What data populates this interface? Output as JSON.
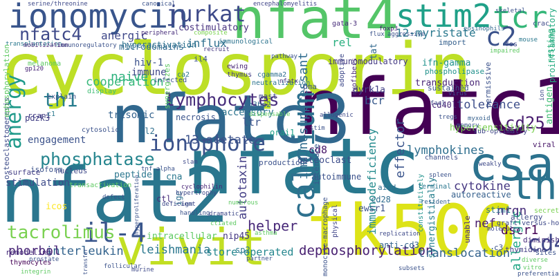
{
  "words": [
    {
      "text": "cyclosporin",
      "color": "#bddf26"
    },
    {
      "text": "nfatc",
      "color": "#29788e"
    },
    {
      "text": "nfat2",
      "color": "#2a768e"
    },
    {
      "text": "nfatc1",
      "color": "#440154"
    },
    {
      "text": "nfatc3",
      "color": "#31688e"
    },
    {
      "text": "nfat4",
      "color": "#54c568"
    },
    {
      "text": "fk506",
      "color": "#dde318"
    },
    {
      "text": "vivit",
      "color": "#c2df23"
    },
    {
      "text": "csa",
      "color": "#2c728e"
    },
    {
      "text": "ionomycin",
      "color": "#39558c"
    },
    {
      "text": "stim2",
      "color": "#1fa088"
    },
    {
      "text": "tcr",
      "color": "#35b779"
    },
    {
      "text": "jurkat",
      "color": "#3e4a89"
    },
    {
      "text": "calcium",
      "color": "#2d708e"
    },
    {
      "text": "th2",
      "color": "#2c738e"
    },
    {
      "text": "ionophore",
      "color": "#3b528b"
    },
    {
      "text": "il-4",
      "color": "#39568c"
    },
    {
      "text": "nfatc4",
      "color": "#3e4989"
    },
    {
      "text": "c2",
      "color": "#3b528b"
    },
    {
      "text": "lymphocytes",
      "color": "#472d7b"
    },
    {
      "text": "anergy",
      "color": "#1f9a8a"
    },
    {
      "text": "th1",
      "color": "#287d8e"
    },
    {
      "text": "cd4",
      "color": "#3f4788"
    },
    {
      "text": "tacrolimus",
      "color": "#7ad151"
    },
    {
      "text": "phosphatase",
      "color": "#25858e"
    },
    {
      "text": "cd25",
      "color": "#481d6f"
    },
    {
      "text": "tolerance",
      "color": "#3d4e8a"
    },
    {
      "text": "immunosuppressant",
      "color": "#2f6c8e"
    },
    {
      "text": "immunodeficiency",
      "color": "#238a8d"
    },
    {
      "text": "helper",
      "color": "#482979"
    },
    {
      "text": "dephosphorylation",
      "color": "#482071"
    },
    {
      "text": "translocation",
      "color": "#33628d"
    },
    {
      "text": "interleukin",
      "color": "#33638d"
    },
    {
      "text": "phorbol",
      "color": "#482576"
    },
    {
      "text": "leishmania",
      "color": "#2a778e"
    },
    {
      "text": "store-operated",
      "color": "#24868e"
    },
    {
      "text": "13-acetate",
      "color": "#3b528b"
    },
    {
      "text": "cooperation",
      "color": "#35b779"
    },
    {
      "text": "cytokine",
      "color": "#453781"
    },
    {
      "text": "lymphokines",
      "color": "#2e6e8e"
    },
    {
      "text": "autotaxin",
      "color": "#433e85"
    },
    {
      "text": "dscr1",
      "color": "#440154"
    },
    {
      "text": "nrqn",
      "color": "#472c7a"
    },
    {
      "text": "allergic",
      "color": "#22a785"
    },
    {
      "text": "nef",
      "color": "#481b6d"
    },
    {
      "text": "12-myristate",
      "color": "#2a788e"
    },
    {
      "text": "anergic",
      "color": "#3f4889"
    },
    {
      "text": "naive",
      "color": "#2db27d"
    },
    {
      "text": "rel",
      "color": "#29af7f"
    },
    {
      "text": "influx",
      "color": "#2e6f8e"
    },
    {
      "text": "bcr",
      "color": "#38598c"
    },
    {
      "text": "cd8",
      "color": "#481769"
    },
    {
      "text": "effector",
      "color": "#3a548c"
    },
    {
      "text": "accessory",
      "color": "#2c738e"
    },
    {
      "text": "ltr",
      "color": "#3a538b"
    },
    {
      "text": "costimulatory",
      "color": "#46307e"
    },
    {
      "text": "microdomains",
      "color": "#31688e"
    },
    {
      "text": "hiv-1",
      "color": "#3b518b"
    },
    {
      "text": "immune",
      "color": "#3f4889"
    },
    {
      "text": "trisomic",
      "color": "#33628d"
    },
    {
      "text": "pdzk3",
      "color": "#423f85"
    },
    {
      "text": "engagement",
      "color": "#3b528b"
    },
    {
      "text": "stimulation",
      "color": "#3e4c8a"
    },
    {
      "text": "hypersensitivity",
      "color": "#7ad151"
    },
    {
      "text": "antigen",
      "color": "#3fbc73"
    },
    {
      "text": "transduction",
      "color": "#482576"
    },
    {
      "text": "ifn-gamma",
      "color": "#20928c"
    },
    {
      "text": "osteoclast",
      "color": "#3d4d8a"
    },
    {
      "text": "cd40l",
      "color": "#482878"
    },
    {
      "text": "dyrk1a",
      "color": "#424186"
    },
    {
      "text": "tat",
      "color": "#31688e"
    },
    {
      "text": "immunomodulatory",
      "color": "#443a83"
    },
    {
      "text": "autoimmune",
      "color": "#3b528b"
    },
    {
      "text": "autoreactive",
      "color": "#35608d"
    },
    {
      "text": "cd28",
      "color": "#2f6b8e"
    },
    {
      "text": "aicd",
      "color": "#2e6e8e"
    },
    {
      "text": "ewsr1",
      "color": "#3b528b"
    },
    {
      "text": "anti-cd3",
      "color": "#33638d"
    },
    {
      "text": "stim1",
      "color": "#2c738e"
    },
    {
      "text": "peptide",
      "color": "#2a768e"
    },
    {
      "text": "cna",
      "color": "#2a788e"
    },
    {
      "text": "icos",
      "color": "#fde725"
    },
    {
      "text": "ige",
      "color": "#2e6f8e"
    },
    {
      "text": "ctl",
      "color": "#472d7b"
    },
    {
      "text": "nip45",
      "color": "#453882"
    },
    {
      "text": "sp2",
      "color": "#2a778e"
    },
    {
      "text": "intracellular",
      "color": "#5ec962"
    },
    {
      "text": "orai1",
      "color": "#1fa188"
    },
    {
      "text": "sh3bp2",
      "color": "#31688e"
    },
    {
      "text": "mast",
      "color": "#3e4a89"
    },
    {
      "text": "necrosis",
      "color": "#3a538b"
    },
    {
      "text": "il2",
      "color": "#2e6e8e"
    },
    {
      "text": "rcan1",
      "color": "#433e85"
    },
    {
      "text": "isoform",
      "color": "#3b528b"
    },
    {
      "text": "nucleus",
      "color": "#3e4989"
    },
    {
      "text": "surface",
      "color": "#433e85"
    },
    {
      "text": "osteoclastogenesis",
      "color": "#3e4c8a"
    },
    {
      "text": "remodeling",
      "color": "#472d7b"
    },
    {
      "text": "thymocytes",
      "color": "#440154"
    },
    {
      "text": "production",
      "color": "#3b518b"
    },
    {
      "text": "interface",
      "color": "#38598c"
    },
    {
      "text": "physical",
      "color": "#404588"
    },
    {
      "text": "monocyte-macrophage",
      "color": "#3b528b"
    },
    {
      "text": "constitutively",
      "color": "#20928c"
    },
    {
      "text": "synergistically",
      "color": "#277f8e"
    },
    {
      "text": "unable",
      "color": "#472c7a"
    },
    {
      "text": "channels",
      "color": "#3d4e8a"
    },
    {
      "text": "terminal",
      "color": "#2a768e"
    },
    {
      "text": "resident",
      "color": "#34618d"
    },
    {
      "text": "permissive",
      "color": "#3b528b"
    },
    {
      "text": "resting",
      "color": "#2db27d"
    },
    {
      "text": "proinflammatory",
      "color": "#25ab82"
    },
    {
      "text": "viral",
      "color": "#481769"
    },
    {
      "text": "sub-optimally",
      "color": "#404688"
    },
    {
      "text": "diminished",
      "color": "#472d7b"
    },
    {
      "text": "thymidine",
      "color": "#433e85"
    },
    {
      "text": "sites",
      "color": "#3b528b"
    },
    {
      "text": "graft-versus-host",
      "color": "#3e4989"
    },
    {
      "text": "secreting",
      "color": "#7ad151"
    },
    {
      "text": "allergy",
      "color": "#3e4a89"
    },
    {
      "text": "c3",
      "color": "#3b528b"
    },
    {
      "text": "c1",
      "color": "#2a788e"
    },
    {
      "text": "sustained",
      "color": "#3b528b"
    },
    {
      "text": "phospholipase",
      "color": "#21918c"
    },
    {
      "text": "pma",
      "color": "#3b528b"
    },
    {
      "text": "adoptive",
      "color": "#3e4989"
    },
    {
      "text": "myofibers",
      "color": "#482878"
    },
    {
      "text": "ewing",
      "color": "#482576"
    },
    {
      "text": "thymus",
      "color": "#433e85"
    },
    {
      "text": "cgamma2",
      "color": "#2e6f8e"
    },
    {
      "text": "neutralization",
      "color": "#2c738e"
    },
    {
      "text": "synergizes",
      "color": "#5ec962"
    },
    {
      "text": "infected",
      "color": "#3b528b"
    },
    {
      "text": "ca2",
      "color": "#2a788e"
    },
    {
      "text": "il4",
      "color": "#3b528b"
    },
    {
      "text": "recruit",
      "color": "#453781"
    },
    {
      "text": "immunological",
      "color": "#2c738e"
    },
    {
      "text": "hyperactivation",
      "color": "#2c718e"
    },
    {
      "text": "peripheral",
      "color": "#472d7b"
    },
    {
      "text": "melanoma",
      "color": "#5ec962"
    },
    {
      "text": "gp120",
      "color": "#482576"
    },
    {
      "text": "explain",
      "color": "#3b528b"
    },
    {
      "text": "display",
      "color": "#3fbc73"
    },
    {
      "text": "transplantation",
      "color": "#2a788e"
    },
    {
      "text": "immunoregulatory",
      "color": "#3b528b"
    },
    {
      "text": "mobilization",
      "color": "#472d7b"
    },
    {
      "text": "serine/threonine",
      "color": "#3e4989"
    },
    {
      "text": "canonical",
      "color": "#3b528b"
    },
    {
      "text": "encephalomyelitis",
      "color": "#404588"
    },
    {
      "text": "gata-3",
      "color": "#472c7a"
    },
    {
      "text": "skeletal",
      "color": "#3b528b"
    },
    {
      "text": "crac",
      "color": "#3e4a89"
    },
    {
      "text": "eosinophils",
      "color": "#31688e"
    },
    {
      "text": "mouse",
      "color": "#2a788e"
    },
    {
      "text": "import",
      "color": "#35608d"
    },
    {
      "text": "aggressive",
      "color": "#3b528b"
    },
    {
      "text": "foxp3",
      "color": "#482071"
    },
    {
      "text": "flux",
      "color": "#3b528b"
    },
    {
      "text": "fos",
      "color": "#3e4989"
    },
    {
      "text": "impaired",
      "color": "#5ec962"
    },
    {
      "text": "composite",
      "color": "#7ad151"
    },
    {
      "text": "pathway",
      "color": "#3b528b"
    },
    {
      "text": "nfatx",
      "color": "#472d7b"
    },
    {
      "text": "tregs",
      "color": "#3b528b"
    },
    {
      "text": "fasl",
      "color": "#3e4a89"
    },
    {
      "text": "virus",
      "color": "#3b528b"
    },
    {
      "text": "ion",
      "color": "#3e4989"
    },
    {
      "text": "myxoid",
      "color": "#35608d"
    },
    {
      "text": "memory",
      "color": "#3b528b"
    },
    {
      "text": "allogenic",
      "color": "#3e4989"
    },
    {
      "text": "dispensable",
      "color": "#5ec962"
    },
    {
      "text": "stim",
      "color": "#3b528b"
    },
    {
      "text": "cytosolic",
      "color": "#3b528b"
    },
    {
      "text": "slam",
      "color": "#3e4989"
    },
    {
      "text": "tnf-alpha",
      "color": "#3b528b"
    },
    {
      "text": "cyclophilin",
      "color": "#482576"
    },
    {
      "text": "transactivation",
      "color": "#5ec962"
    },
    {
      "text": "spleen",
      "color": "#3b528b"
    },
    {
      "text": "weakly",
      "color": "#3e4989"
    },
    {
      "text": "defect",
      "color": "#3b528b"
    },
    {
      "text": "hypertrophy",
      "color": "#3e4989"
    },
    {
      "text": "igm",
      "color": "#3b528b"
    },
    {
      "text": "deficient",
      "color": "#3e4989"
    },
    {
      "text": "hyperproliferation",
      "color": "#3b528b"
    },
    {
      "text": "handling",
      "color": "#3b528b"
    },
    {
      "text": "dramatic",
      "color": "#3e4989"
    },
    {
      "text": "numerous",
      "color": "#5ec962"
    },
    {
      "text": "asthma",
      "color": "#5ec962"
    },
    {
      "text": "partner",
      "color": "#3b528b"
    },
    {
      "text": "replication",
      "color": "#3e4989"
    },
    {
      "text": "subsets",
      "color": "#3b528b"
    },
    {
      "text": "molecules",
      "color": "#3e4989"
    },
    {
      "text": "preferentially",
      "color": "#3b528b"
    },
    {
      "text": "diverse",
      "color": "#5ec962"
    },
    {
      "text": "transfer",
      "color": "#3b528b"
    },
    {
      "text": "follicular",
      "color": "#3b528b"
    },
    {
      "text": "murine",
      "color": "#3e4989"
    },
    {
      "text": "integrin",
      "color": "#5ec962"
    },
    {
      "text": "prostate",
      "color": "#3b528b"
    },
    {
      "text": "ephosphorylation",
      "color": "#5ec962"
    },
    {
      "text": "ctiated",
      "color": "#5ec962"
    },
    {
      "text": "vitro",
      "color": "#5ec962"
    }
  ]
}
